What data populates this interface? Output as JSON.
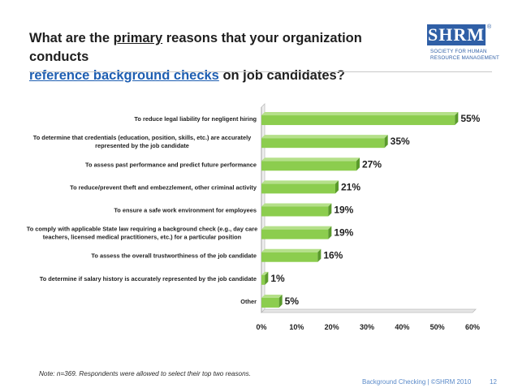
{
  "title": {
    "part1": "What are the ",
    "underlined": "primary",
    "part2": " reasons that your organization conducts",
    "link": "reference background checks",
    "part3": " on job candidates?"
  },
  "logo": {
    "box": "SHRM",
    "reg": "®",
    "line1": "SOCIETY FOR HUMAN",
    "line2": "RESOURCE MANAGEMENT"
  },
  "chart_data": {
    "type": "bar",
    "orientation": "horizontal",
    "categories": [
      "To reduce legal liability for negligent hiring",
      "To determine that credentials (education, position, skills, etc.) are accurately represented by the job candidate",
      "To assess past performance and predict future performance",
      "To reduce/prevent theft and embezzlement, other criminal activity",
      "To ensure a safe work environment for employees",
      "To comply with applicable State law requiring a background check (e.g., day care teachers, licensed medical practitioners, etc.) for a particular position",
      "To assess the overall trustworthiness of the job candidate",
      "To determine if salary history is accurately represented by the job candidate",
      "Other"
    ],
    "label_lines": [
      [
        "To reduce legal liability for negligent hiring"
      ],
      [
        "To determine that credentials (education, position, skills, etc.) are accurately",
        "represented by the job candidate"
      ],
      [
        "To assess past performance and predict future performance"
      ],
      [
        "To reduce/prevent theft and embezzlement, other criminal activity"
      ],
      [
        "To ensure a safe work environment for employees"
      ],
      [
        "To comply with applicable State law requiring a background check (e.g., day care",
        "teachers, licensed medical practitioners, etc.) for a particular position"
      ],
      [
        "To assess the overall trustworthiness of the job candidate"
      ],
      [
        "To determine if salary history is accurately represented by the job candidate"
      ],
      [
        "Other"
      ]
    ],
    "values": [
      55,
      35,
      27,
      21,
      19,
      19,
      16,
      1,
      5
    ],
    "value_labels": [
      "55%",
      "35%",
      "27%",
      "21%",
      "19%",
      "19%",
      "16%",
      "1%",
      "5%"
    ],
    "xlim": [
      0,
      60
    ],
    "xticks": [
      "0%",
      "10%",
      "20%",
      "30%",
      "40%",
      "50%",
      "60%"
    ],
    "xtick_values": [
      0,
      10,
      20,
      30,
      40,
      50,
      60
    ],
    "bar_color": "#8ccd4e",
    "bar_side_color": "#5a9a2c",
    "grid": false
  },
  "note": "Note: n=369. Respondents were allowed to select their top two reasons.",
  "footer": "Background Checking | ©SHRM 2010",
  "page_number": "12"
}
